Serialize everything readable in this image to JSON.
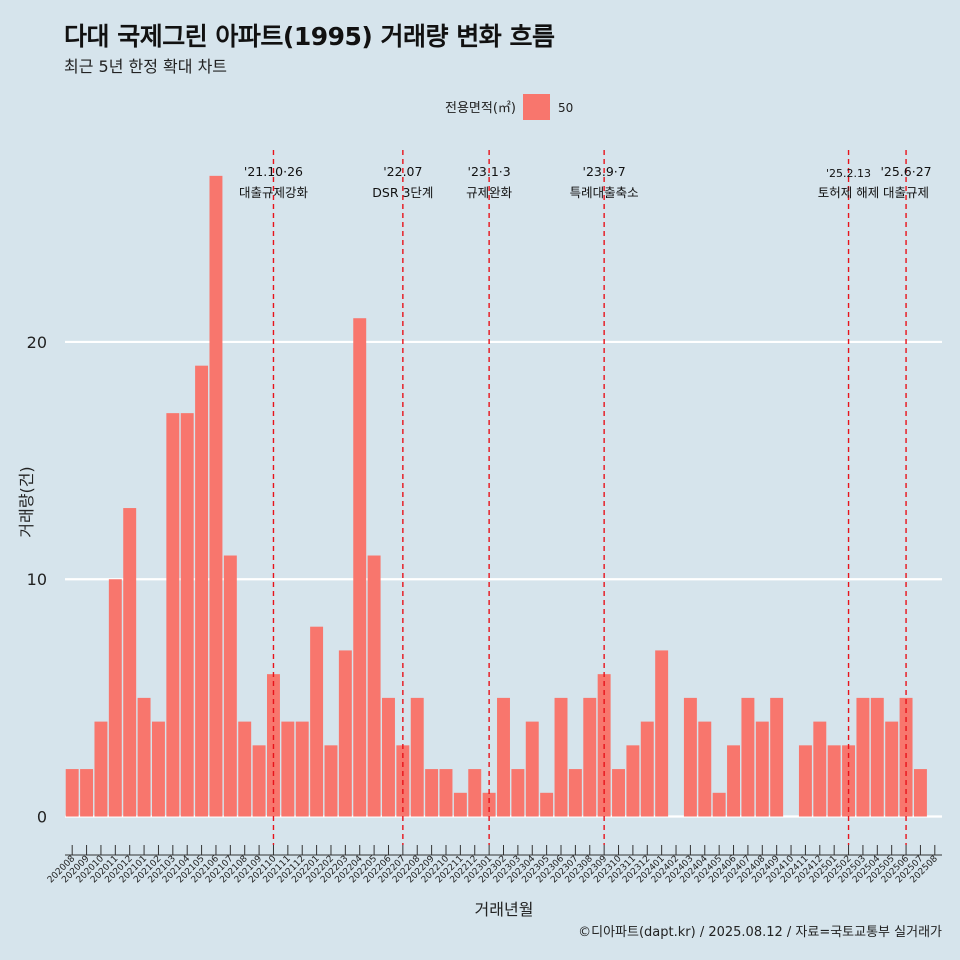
{
  "title": "다대 국제그린 아파트(1995) 거래량 변화 흐름",
  "subtitle": "최근 5년 한정 확대 차트",
  "caption": "©디아파트(dapt.kr) / 2025.08.12 / 자료=국토교통부 실거래가",
  "colors": {
    "background": "#d6e4ec",
    "bar": "#f8766d",
    "event_line": "#e8121a",
    "grid": "#ffffff"
  },
  "chart_data": {
    "type": "bar",
    "xlabel": "거래년월",
    "ylabel": "거래량(건)",
    "ylim": [
      -1.2,
      28.3
    ],
    "yticks": [
      0,
      10,
      20
    ],
    "grid": "horizontal major lines",
    "legend": {
      "position": "top",
      "title": "전용면적(㎡)",
      "entries": [
        "50"
      ]
    },
    "categories": [
      "202008",
      "202009",
      "202010",
      "202011",
      "202012",
      "202101",
      "202102",
      "202103",
      "202104",
      "202105",
      "202106",
      "202107",
      "202108",
      "202109",
      "202110",
      "202111",
      "202112",
      "202201",
      "202202",
      "202203",
      "202204",
      "202205",
      "202206",
      "202207",
      "202208",
      "202209",
      "202210",
      "202211",
      "202212",
      "202301",
      "202302",
      "202303",
      "202304",
      "202305",
      "202306",
      "202307",
      "202308",
      "202309",
      "202310",
      "202311",
      "202312",
      "202401",
      "202402",
      "202403",
      "202404",
      "202405",
      "202406",
      "202407",
      "202408",
      "202409",
      "202410",
      "202411",
      "202412",
      "202501",
      "202502",
      "202503",
      "202504",
      "202505",
      "202506",
      "202507",
      "202508"
    ],
    "series": [
      {
        "name": "50",
        "values": [
          2,
          2,
          4,
          10,
          13,
          5,
          4,
          17,
          17,
          19,
          27,
          11,
          4,
          3,
          6,
          4,
          4,
          8,
          3,
          7,
          21,
          11,
          5,
          3,
          5,
          2,
          2,
          1,
          2,
          1,
          5,
          2,
          4,
          1,
          5,
          2,
          5,
          6,
          2,
          3,
          4,
          7,
          0,
          5,
          4,
          1,
          3,
          5,
          4,
          5,
          0,
          3,
          4,
          3,
          3,
          5,
          5,
          4,
          5,
          2,
          0
        ]
      }
    ],
    "events": [
      {
        "category": "202110",
        "date": "'21.10·26",
        "label": "대출규제강화"
      },
      {
        "category": "202207",
        "date": "'22.07",
        "label": "DSR 3단계"
      },
      {
        "category": "202301",
        "date": "'23.1·3",
        "label": "규제완화"
      },
      {
        "category": "202309",
        "date": "'23.9·7",
        "label": "특례대출축소"
      },
      {
        "category": "202502",
        "date": "'25.2.13",
        "label": "토허제 해제"
      },
      {
        "category": "202506",
        "date": "'25.6·27",
        "label": "대출규제"
      }
    ]
  }
}
